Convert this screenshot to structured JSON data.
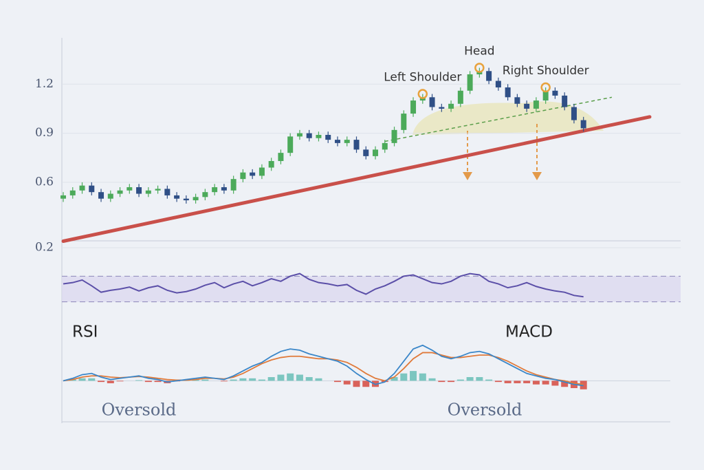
{
  "chart_data": [
    {
      "type": "candlestick",
      "ylim": [
        0.2,
        1.42
      ],
      "yticks": [
        1.2,
        0.9,
        0.6,
        0.2
      ],
      "xlim": [
        0,
        62
      ],
      "grid": true,
      "up_color": "#4caa5a",
      "down_color": "#2f4f86",
      "open": [
        0.5,
        0.52,
        0.55,
        0.58,
        0.54,
        0.5,
        0.53,
        0.55,
        0.57,
        0.53,
        0.55,
        0.56,
        0.52,
        0.5,
        0.49,
        0.51,
        0.54,
        0.57,
        0.55,
        0.62,
        0.66,
        0.64,
        0.69,
        0.73,
        0.78,
        0.88,
        0.9,
        0.87,
        0.89,
        0.86,
        0.84,
        0.86,
        0.8,
        0.76,
        0.8,
        0.84,
        0.92,
        1.02,
        1.1,
        1.12,
        1.06,
        1.05,
        1.08,
        1.16,
        1.26,
        1.28,
        1.22,
        1.18,
        1.12,
        1.08,
        1.05,
        1.1,
        1.16,
        1.13,
        1.06,
        0.98
      ],
      "high": [
        0.54,
        0.57,
        0.6,
        0.6,
        0.56,
        0.55,
        0.57,
        0.59,
        0.59,
        0.57,
        0.58,
        0.58,
        0.54,
        0.52,
        0.53,
        0.56,
        0.59,
        0.59,
        0.64,
        0.68,
        0.68,
        0.71,
        0.75,
        0.8,
        0.9,
        0.92,
        0.92,
        0.91,
        0.91,
        0.88,
        0.88,
        0.88,
        0.82,
        0.82,
        0.86,
        0.94,
        1.04,
        1.12,
        1.14,
        1.14,
        1.08,
        1.1,
        1.18,
        1.28,
        1.3,
        1.3,
        1.24,
        1.2,
        1.14,
        1.1,
        1.12,
        1.18,
        1.18,
        1.15,
        1.08,
        1.0
      ],
      "low": [
        0.48,
        0.5,
        0.53,
        0.52,
        0.48,
        0.48,
        0.51,
        0.53,
        0.51,
        0.51,
        0.53,
        0.5,
        0.48,
        0.47,
        0.47,
        0.49,
        0.52,
        0.53,
        0.53,
        0.6,
        0.62,
        0.62,
        0.67,
        0.71,
        0.76,
        0.86,
        0.85,
        0.85,
        0.84,
        0.82,
        0.82,
        0.78,
        0.74,
        0.74,
        0.78,
        0.82,
        0.9,
        1.0,
        1.08,
        1.04,
        1.03,
        1.03,
        1.06,
        1.14,
        1.24,
        1.2,
        1.16,
        1.1,
        1.06,
        1.03,
        1.03,
        1.08,
        1.11,
        1.04,
        0.96,
        0.91
      ],
      "close": [
        0.52,
        0.55,
        0.58,
        0.54,
        0.5,
        0.53,
        0.55,
        0.57,
        0.53,
        0.55,
        0.56,
        0.52,
        0.5,
        0.49,
        0.51,
        0.54,
        0.57,
        0.55,
        0.62,
        0.66,
        0.64,
        0.69,
        0.73,
        0.78,
        0.88,
        0.9,
        0.87,
        0.89,
        0.86,
        0.84,
        0.86,
        0.8,
        0.76,
        0.8,
        0.84,
        0.92,
        1.02,
        1.1,
        1.12,
        1.06,
        1.05,
        1.08,
        1.16,
        1.26,
        1.28,
        1.22,
        1.18,
        1.12,
        1.08,
        1.05,
        1.1,
        1.16,
        1.13,
        1.06,
        0.98,
        0.93
      ],
      "support_line": {
        "x": [
          0,
          62
        ],
        "values": [
          0.24,
          1.0
        ],
        "color": "#c9504a"
      },
      "neckline": {
        "x": [
          34,
          58
        ],
        "values": [
          0.85,
          1.12
        ],
        "color": "#5a9e4a"
      },
      "annotations": [
        {
          "text": "Left Shoulder",
          "x": 38
        },
        {
          "text": "Head",
          "x": 44
        },
        {
          "text": "Right Shoulder",
          "x": 51
        }
      ]
    },
    {
      "type": "line",
      "title": "RSI",
      "note": "Oversold",
      "ylim": [
        20,
        80
      ],
      "xlim": [
        0,
        62
      ],
      "band": [
        30,
        70
      ],
      "color": "#5b4fa8",
      "values": [
        58,
        60,
        64,
        55,
        45,
        48,
        50,
        53,
        47,
        52,
        55,
        48,
        44,
        46,
        50,
        56,
        60,
        52,
        58,
        62,
        55,
        60,
        66,
        62,
        70,
        74,
        65,
        60,
        58,
        55,
        57,
        48,
        42,
        50,
        55,
        62,
        70,
        72,
        66,
        60,
        58,
        62,
        70,
        74,
        72,
        62,
        58,
        52,
        55,
        60,
        54,
        50,
        47,
        45,
        40,
        38
      ]
    },
    {
      "type": "macd",
      "title": "MACD",
      "note": "Oversold",
      "ylim": [
        -1.5,
        3
      ],
      "xlim": [
        0,
        62
      ],
      "macd": {
        "color": "#3a86c8",
        "values": [
          0,
          0.2,
          0.5,
          0.6,
          0.3,
          0.1,
          0.2,
          0.3,
          0.4,
          0.2,
          0.1,
          -0.1,
          0,
          0.1,
          0.2,
          0.3,
          0.2,
          0.1,
          0.4,
          0.8,
          1.2,
          1.5,
          2.0,
          2.4,
          2.6,
          2.5,
          2.2,
          2.0,
          1.8,
          1.6,
          1.2,
          0.6,
          0.1,
          -0.3,
          -0.1,
          0.6,
          1.6,
          2.6,
          2.9,
          2.5,
          2.0,
          1.8,
          2.0,
          2.3,
          2.4,
          2.2,
          1.8,
          1.4,
          1.0,
          0.6,
          0.4,
          0.2,
          0.1,
          -0.1,
          -0.3,
          -0.4
        ]
      },
      "signal": {
        "color": "#e07a3a",
        "values": [
          0,
          0.1,
          0.3,
          0.4,
          0.4,
          0.3,
          0.25,
          0.3,
          0.35,
          0.3,
          0.2,
          0.1,
          0.05,
          0.05,
          0.1,
          0.2,
          0.2,
          0.15,
          0.3,
          0.6,
          1.0,
          1.4,
          1.7,
          1.9,
          2.0,
          2.0,
          1.9,
          1.8,
          1.8,
          1.7,
          1.5,
          1.1,
          0.6,
          0.2,
          0,
          0.3,
          1.0,
          1.8,
          2.3,
          2.3,
          2.1,
          1.9,
          1.9,
          2.0,
          2.1,
          2.1,
          1.9,
          1.6,
          1.2,
          0.8,
          0.5,
          0.3,
          0.1,
          0,
          -0.2,
          -0.3
        ]
      },
      "histogram": {
        "up_color": "#7cc6c0",
        "down_color": "#d9625a",
        "values": [
          0,
          0.1,
          0.2,
          0.2,
          -0.1,
          -0.2,
          -0.05,
          0,
          0.05,
          -0.1,
          -0.1,
          -0.2,
          -0.05,
          0.05,
          0.1,
          0.1,
          0,
          -0.05,
          0.1,
          0.2,
          0.2,
          0.1,
          0.3,
          0.5,
          0.6,
          0.5,
          0.3,
          0.2,
          0,
          -0.1,
          -0.3,
          -0.5,
          -0.5,
          -0.5,
          -0.1,
          0.3,
          0.6,
          0.8,
          0.6,
          0.2,
          -0.1,
          -0.1,
          0.1,
          0.3,
          0.3,
          0.1,
          -0.1,
          -0.2,
          -0.2,
          -0.2,
          -0.3,
          -0.3,
          -0.4,
          -0.5,
          -0.6,
          -0.7
        ]
      }
    }
  ]
}
